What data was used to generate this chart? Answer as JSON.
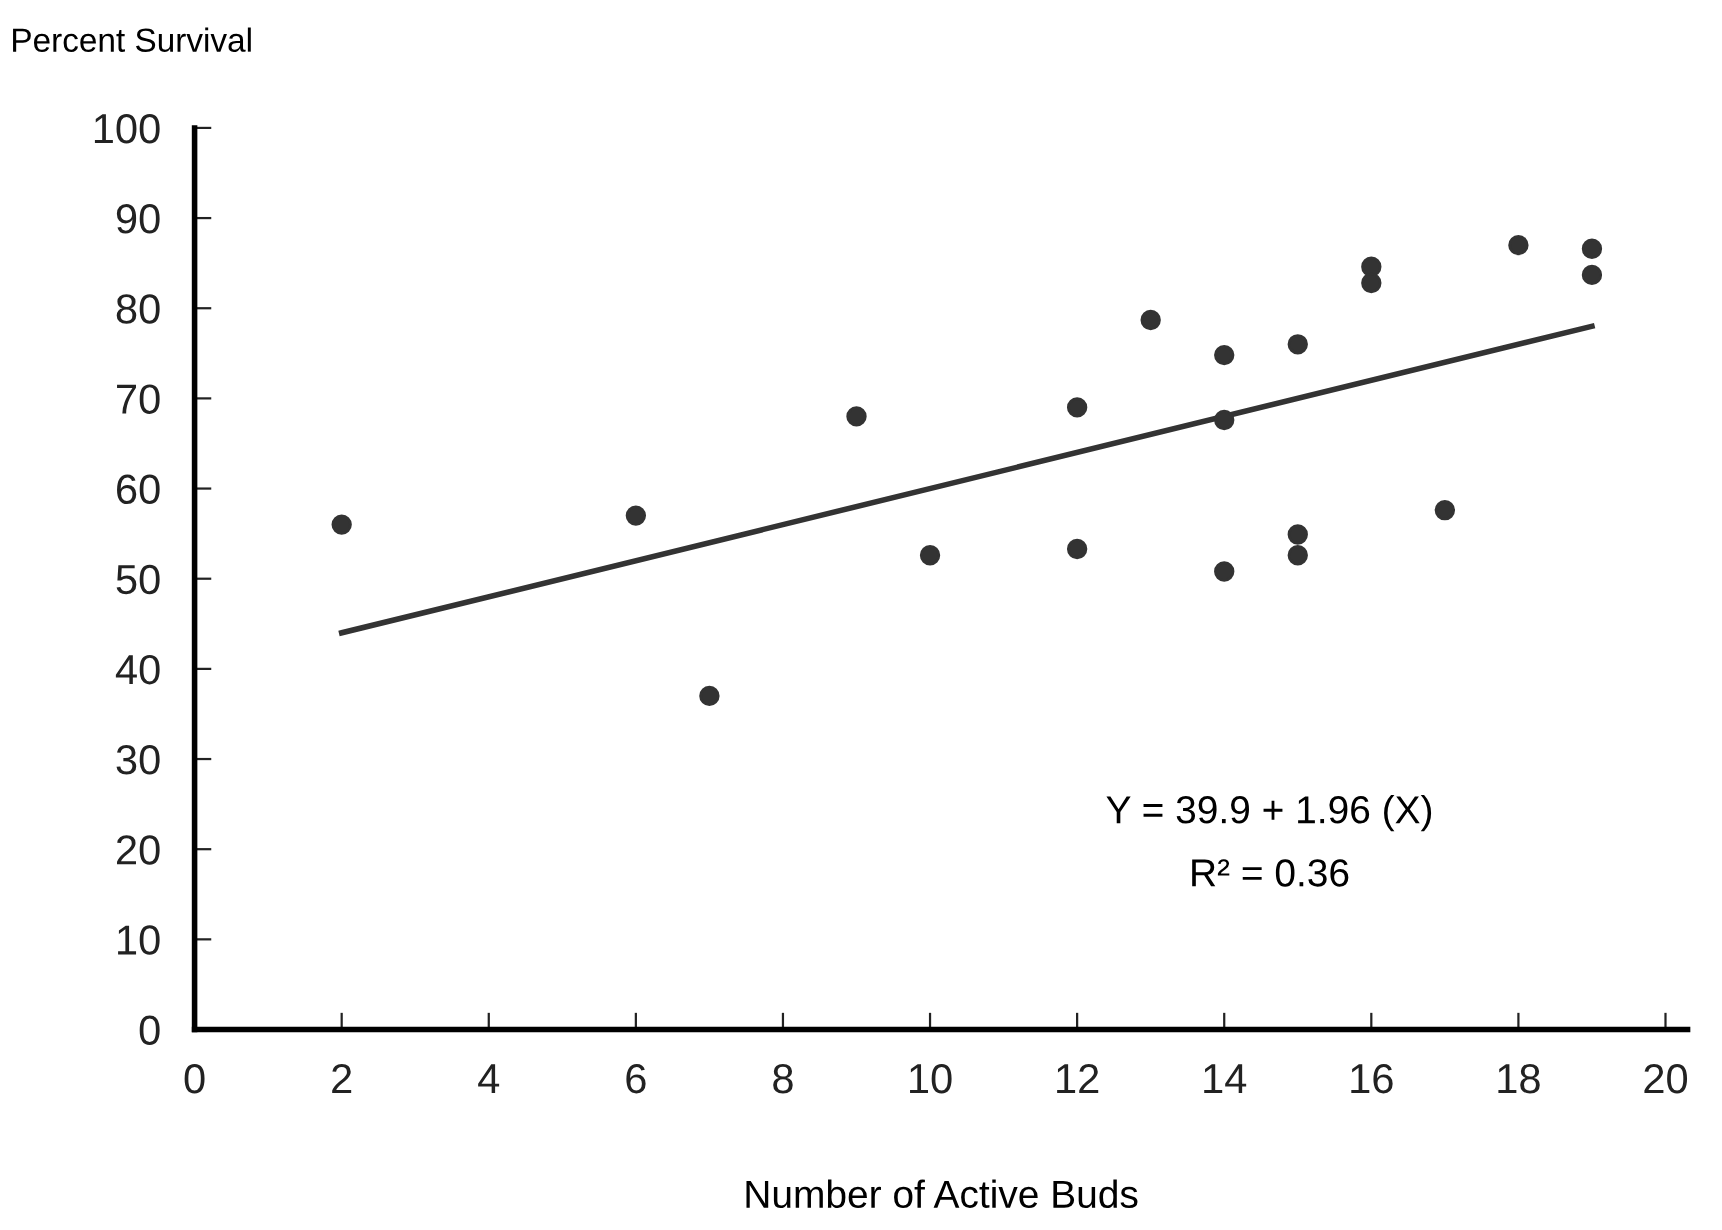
{
  "chart_data": {
    "type": "scatter",
    "title": "Percent Survival",
    "xlabel": "Number of Active Buds",
    "annotations": [
      "Y = 39.9 + 1.96 (X)",
      "R² = 0.36"
    ],
    "xlim": [
      0,
      20.3
    ],
    "ylim": [
      0,
      100
    ],
    "xticks": [
      0,
      2,
      4,
      6,
      8,
      10,
      12,
      14,
      16,
      18,
      20
    ],
    "yticks": [
      0,
      10,
      20,
      30,
      40,
      50,
      60,
      70,
      80,
      90,
      100
    ],
    "grid": false,
    "legend": false,
    "series": [
      {
        "color": "#333333",
        "marker": "circle",
        "x": [
          2,
          6,
          7,
          9,
          10,
          12,
          12,
          13,
          14,
          14,
          14,
          15,
          15,
          15,
          16,
          16,
          17,
          18,
          19,
          19
        ],
        "values": [
          56,
          57,
          37,
          68,
          52.6,
          69,
          53.3,
          78.7,
          74.8,
          67.6,
          50.8,
          76,
          54.9,
          52.6,
          84.6,
          82.8,
          57.6,
          87,
          86.6,
          83.7
        ]
      },
      {
        "type": "line",
        "color": "#333333",
        "marker": "none",
        "line_style": "solid",
        "x": [
          2,
          19
        ],
        "values": [
          44,
          78
        ]
      }
    ]
  }
}
